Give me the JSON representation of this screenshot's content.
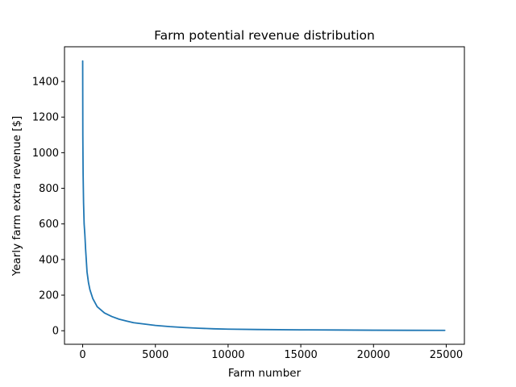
{
  "chart_data": {
    "type": "line",
    "title": "Farm potential revenue distribution",
    "xlabel": "Farm number",
    "ylabel": "Yearly farm extra revenue [$]",
    "xlim": [
      -1250,
      26250
    ],
    "ylim": [
      -76,
      1595
    ],
    "xticks": [
      0,
      5000,
      10000,
      15000,
      20000,
      25000
    ],
    "xtick_labels": [
      "0",
      "5000",
      "10000",
      "15000",
      "20000",
      "25000"
    ],
    "yticks": [
      0,
      200,
      400,
      600,
      800,
      1000,
      1200,
      1400
    ],
    "ytick_labels": [
      "0",
      "200",
      "400",
      "600",
      "800",
      "1000",
      "1200",
      "1400"
    ],
    "grid": false,
    "series": [
      {
        "color": "#1f77b4",
        "x": [
          0,
          10,
          30,
          60,
          100,
          150,
          200,
          300,
          400,
          500,
          700,
          1000,
          1500,
          2000,
          2500,
          3000,
          3500,
          4000,
          5000,
          6000,
          7000,
          8000,
          9000,
          10000,
          12000,
          15000,
          17500,
          20000,
          22500,
          24900
        ],
        "y": [
          1515,
          1100,
          880,
          720,
          600,
          540,
          460,
          330,
          270,
          230,
          180,
          135,
          100,
          80,
          65,
          55,
          45,
          40,
          30,
          23,
          18,
          14,
          11,
          9,
          7,
          5,
          4,
          3,
          2.5,
          2
        ]
      }
    ]
  }
}
